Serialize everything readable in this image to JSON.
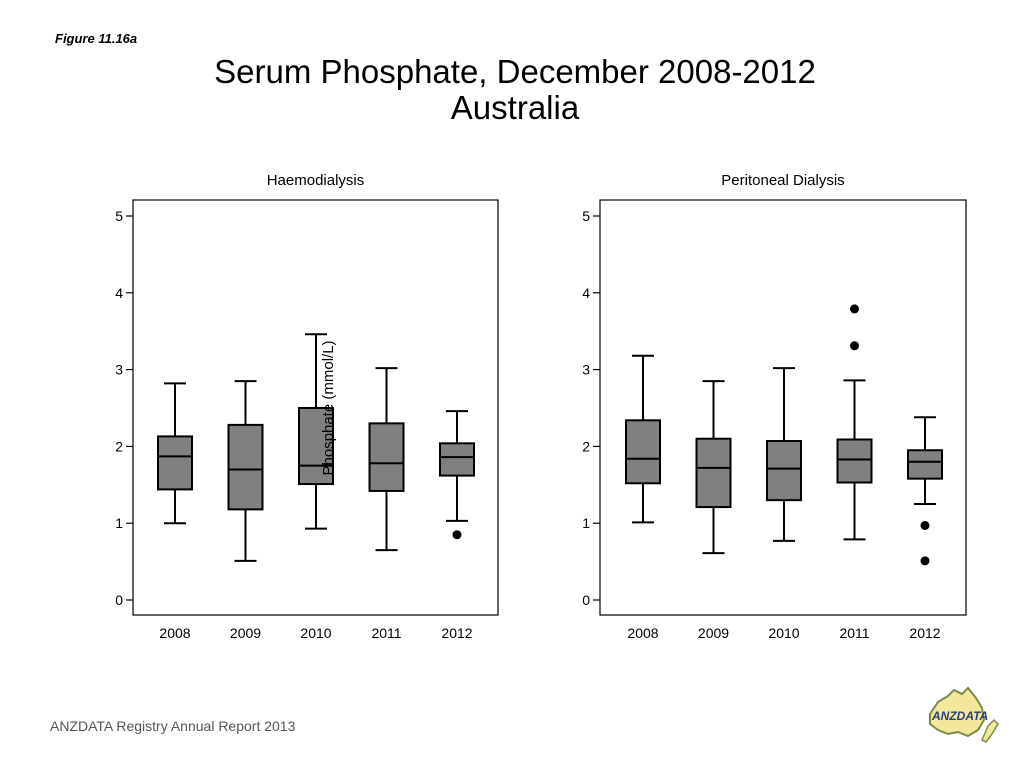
{
  "figure_label": "Figure 11.16a",
  "title_line1": "Serum Phosphate, December 2008-2012",
  "title_line2": "Australia",
  "footer": "ANZDATA Registry Annual Report 2013",
  "logo_text": "ANZDATA",
  "chart_data": [
    {
      "type": "box",
      "title": "Haemodialysis",
      "ylabel": "Phosphate (mmol/L)",
      "ylim": [
        0,
        5
      ],
      "yticks": [
        0,
        1,
        2,
        3,
        4,
        5
      ],
      "categories": [
        "2008",
        "2009",
        "2010",
        "2011",
        "2012"
      ],
      "boxes": [
        {
          "whisker_low": 1.0,
          "q1": 1.44,
          "median": 1.87,
          "q3": 2.13,
          "whisker_high": 2.82,
          "outliers": []
        },
        {
          "whisker_low": 0.51,
          "q1": 1.18,
          "median": 1.7,
          "q3": 2.28,
          "whisker_high": 2.85,
          "outliers": []
        },
        {
          "whisker_low": 0.93,
          "q1": 1.51,
          "median": 1.75,
          "q3": 2.5,
          "whisker_high": 3.46,
          "outliers": []
        },
        {
          "whisker_low": 0.65,
          "q1": 1.42,
          "median": 1.78,
          "q3": 2.3,
          "whisker_high": 3.02,
          "outliers": []
        },
        {
          "whisker_low": 1.03,
          "q1": 1.62,
          "median": 1.86,
          "q3": 2.04,
          "whisker_high": 2.46,
          "outliers": [
            0.85
          ]
        }
      ]
    },
    {
      "type": "box",
      "title": "Peritoneal Dialysis",
      "ylim": [
        0,
        5
      ],
      "yticks": [
        0,
        1,
        2,
        3,
        4,
        5
      ],
      "categories": [
        "2008",
        "2009",
        "2010",
        "2011",
        "2012"
      ],
      "boxes": [
        {
          "whisker_low": 1.01,
          "q1": 1.52,
          "median": 1.84,
          "q3": 2.34,
          "whisker_high": 3.18,
          "outliers": []
        },
        {
          "whisker_low": 0.61,
          "q1": 1.21,
          "median": 1.72,
          "q3": 2.1,
          "whisker_high": 2.85,
          "outliers": []
        },
        {
          "whisker_low": 0.77,
          "q1": 1.3,
          "median": 1.71,
          "q3": 2.07,
          "whisker_high": 3.02,
          "outliers": []
        },
        {
          "whisker_low": 0.79,
          "q1": 1.53,
          "median": 1.83,
          "q3": 2.09,
          "whisker_high": 2.86,
          "outliers": [
            3.31,
            3.79
          ]
        },
        {
          "whisker_low": 1.25,
          "q1": 1.58,
          "median": 1.8,
          "q3": 1.95,
          "whisker_high": 2.38,
          "outliers": [
            0.97,
            0.51
          ]
        }
      ]
    }
  ]
}
